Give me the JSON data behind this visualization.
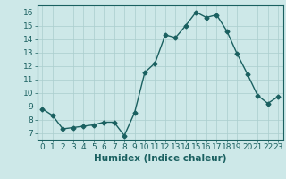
{
  "x": [
    0,
    1,
    2,
    3,
    4,
    5,
    6,
    7,
    8,
    9,
    10,
    11,
    12,
    13,
    14,
    15,
    16,
    17,
    18,
    19,
    20,
    21,
    22,
    23
  ],
  "y": [
    8.8,
    8.3,
    7.3,
    7.4,
    7.5,
    7.6,
    7.8,
    7.8,
    6.8,
    8.5,
    11.5,
    12.2,
    14.3,
    14.1,
    15.0,
    16.0,
    15.6,
    15.8,
    14.6,
    12.9,
    11.4,
    9.8,
    9.2,
    9.7
  ],
  "line_color": "#1a6060",
  "marker": "D",
  "marker_size": 2.5,
  "bg_color": "#cde8e8",
  "grid_color": "#aacece",
  "xlabel": "Humidex (Indice chaleur)",
  "ylim": [
    6.5,
    16.5
  ],
  "xlim": [
    -0.5,
    23.5
  ],
  "yticks": [
    7,
    8,
    9,
    10,
    11,
    12,
    13,
    14,
    15,
    16
  ],
  "xticks": [
    0,
    1,
    2,
    3,
    4,
    5,
    6,
    7,
    8,
    9,
    10,
    11,
    12,
    13,
    14,
    15,
    16,
    17,
    18,
    19,
    20,
    21,
    22,
    23
  ],
  "tick_color": "#1a6060",
  "label_color": "#1a6060",
  "axis_color": "#1a6060",
  "font_size_ticks": 6.5,
  "font_size_xlabel": 7.5,
  "linewidth": 1.0
}
